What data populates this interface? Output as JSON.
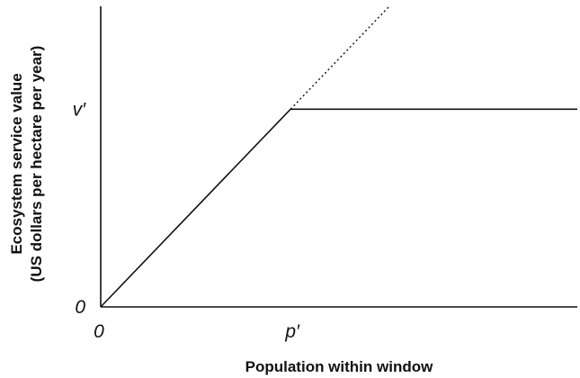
{
  "chart_data": {
    "type": "line",
    "title": "",
    "xlabel": "Population within window",
    "ylabel": [
      "Ecosystem service value",
      "(US dollars per hectare per year)"
    ],
    "x_ticks": [
      {
        "value": 0,
        "label": "0"
      },
      {
        "value": 1,
        "label": "p′"
      }
    ],
    "y_ticks": [
      {
        "value": 0,
        "label": "0"
      },
      {
        "value": 1,
        "label": "v′"
      }
    ],
    "xlim": [
      0,
      2.51
    ],
    "ylim": [
      0,
      1.52
    ],
    "grid": false,
    "series": [
      {
        "style": "solid",
        "x": [
          0,
          1,
          2.51
        ],
        "y": [
          0,
          1,
          1
        ]
      },
      {
        "style": "dotted",
        "x": [
          1,
          1.52
        ],
        "y": [
          1,
          1.52
        ]
      },
      {
        "style": "solid",
        "x": [
          0,
          2.51
        ],
        "y": [
          0,
          0
        ]
      }
    ]
  }
}
